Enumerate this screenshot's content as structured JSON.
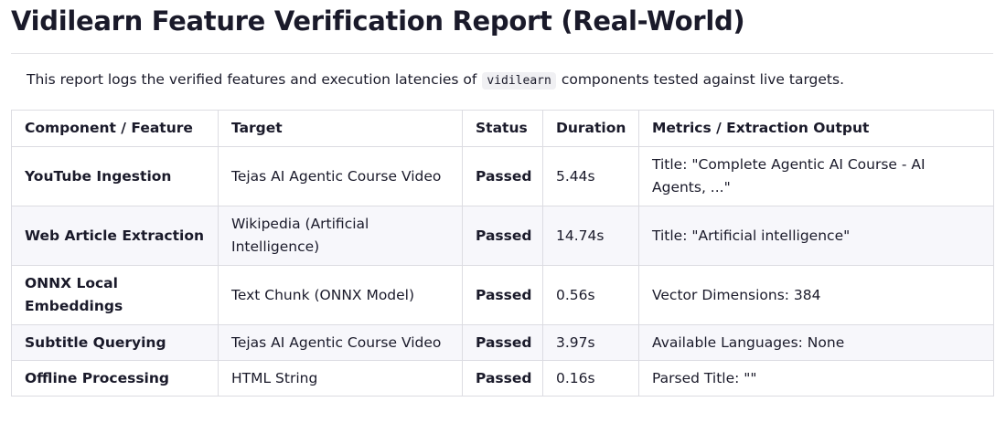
{
  "header": {
    "title": "Vidilearn Feature Verification Report (Real-World)"
  },
  "intro": {
    "before": "This report logs the verified features and execution latencies of",
    "code": "vidilearn",
    "after": "components tested against live targets."
  },
  "table": {
    "columns": [
      "Component / Feature",
      "Target",
      "Status",
      "Duration",
      "Metrics / Extraction Output"
    ],
    "rows": [
      [
        "YouTube Ingestion",
        "Tejas AI Agentic Course Video",
        "Passed",
        "5.44s",
        "Title: \"Complete Agentic AI Course - AI Agents, ...\""
      ],
      [
        "Web Article Extraction",
        "Wikipedia (Artificial Intelligence)",
        "Passed",
        "14.74s",
        "Title: \"Artificial intelligence\""
      ],
      [
        "ONNX Local Embeddings",
        "Text Chunk (ONNX Model)",
        "Passed",
        "0.56s",
        "Vector Dimensions: 384"
      ],
      [
        "Subtitle Querying",
        "Tejas AI Agentic Course Video",
        "Passed",
        "3.97s",
        "Available Languages: None"
      ],
      [
        "Offline Processing",
        "HTML String",
        "Passed",
        "0.16s",
        "Parsed Title: \"\""
      ]
    ]
  }
}
